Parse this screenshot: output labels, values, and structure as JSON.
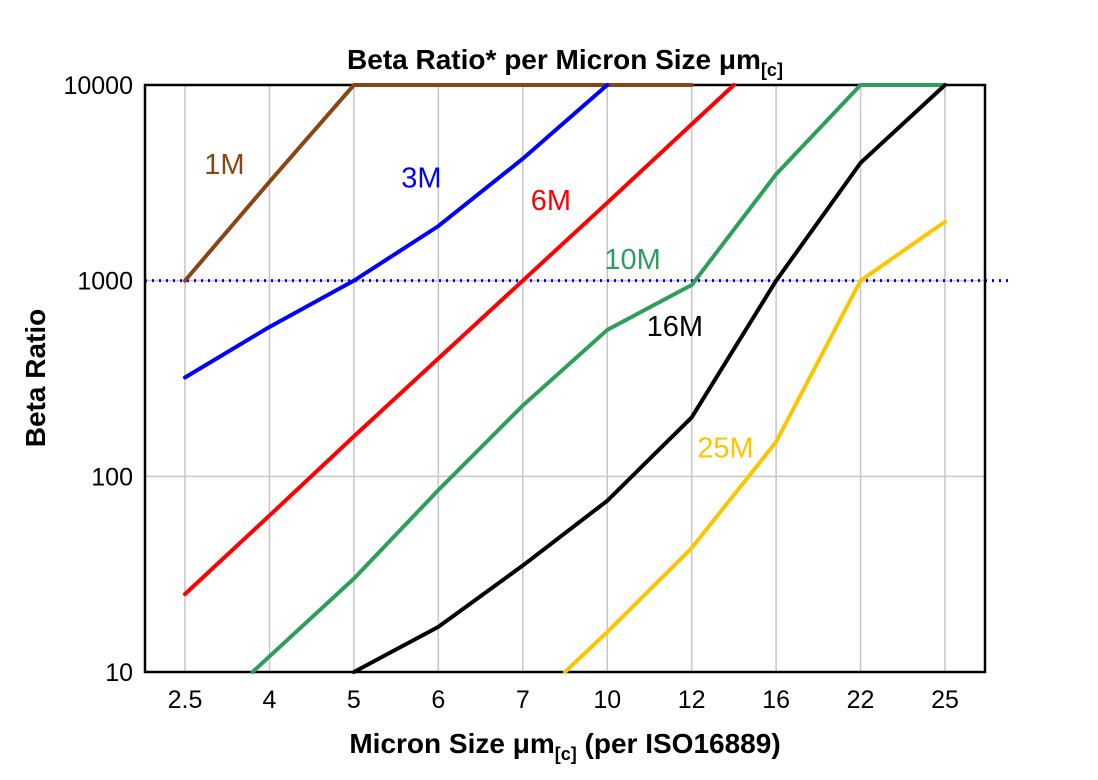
{
  "title": {
    "text": "Beta Ratio* per Micron Size μm",
    "subscript": "[c]"
  },
  "y_axis_label": "Beta Ratio",
  "x_axis_label": {
    "prefix": "Micron Size μm",
    "subscript": "[c]",
    "suffix": " (per ISO16889)"
  },
  "chart_data": {
    "type": "line",
    "x_scale": "categorical",
    "y_scale": "log",
    "categories": [
      2.5,
      4,
      5,
      6,
      7,
      10,
      12,
      16,
      22,
      25
    ],
    "x_tick_labels": [
      "2.5",
      "4",
      "5",
      "6",
      "7",
      "10",
      "12",
      "16",
      "22",
      "25"
    ],
    "ylim": [
      10,
      10000
    ],
    "y_ticks": [
      10,
      100,
      1000,
      10000
    ],
    "h_gridlines": [
      100,
      1000
    ],
    "grid_on": true,
    "grid_color": "#c6c6c6",
    "legend_position": "inline-labels",
    "reference_line": {
      "y": 1000,
      "color": "#0000ee",
      "style": "dotted"
    },
    "series": [
      {
        "name": "1M",
        "color": "#8B4513",
        "points": [
          [
            2.5,
            1000
          ],
          [
            4,
            3200
          ],
          [
            5,
            10000
          ],
          [
            12,
            10000
          ]
        ],
        "label_pos": [
          3.2,
          3500
        ]
      },
      {
        "name": "3M",
        "color": "#0000ff",
        "points": [
          [
            2.5,
            320
          ],
          [
            4,
            580
          ],
          [
            5,
            1000
          ],
          [
            6,
            1900
          ],
          [
            7,
            4200
          ],
          [
            10,
            10000
          ]
        ],
        "label_pos": [
          5.8,
          3000
        ]
      },
      {
        "name": "6M",
        "color": "#ff0000",
        "points": [
          [
            2.5,
            25
          ],
          [
            4,
            63
          ],
          [
            5,
            160
          ],
          [
            6,
            400
          ],
          [
            7,
            1000
          ],
          [
            10,
            2500
          ],
          [
            12,
            6300
          ],
          [
            14,
            10000
          ]
        ],
        "label_pos": [
          8.0,
          2300
        ]
      },
      {
        "name": "10M",
        "color": "#2e9e5b",
        "points": [
          [
            3.7,
            10
          ],
          [
            5,
            30
          ],
          [
            6,
            85
          ],
          [
            7,
            230
          ],
          [
            10,
            560
          ],
          [
            12,
            950
          ],
          [
            16,
            3500
          ],
          [
            22,
            10000
          ],
          [
            25,
            10000
          ]
        ],
        "label_pos": [
          10.6,
          1150
        ]
      },
      {
        "name": "16M",
        "color": "#000000",
        "points": [
          [
            5,
            10
          ],
          [
            6,
            17
          ],
          [
            7,
            35
          ],
          [
            10,
            75
          ],
          [
            12,
            200
          ],
          [
            16,
            1000
          ],
          [
            22,
            4000
          ],
          [
            25,
            10000
          ]
        ],
        "label_pos": [
          11.6,
          520
        ]
      },
      {
        "name": "25M",
        "color": "#fdc500",
        "points": [
          [
            8.5,
            10
          ],
          [
            10,
            16
          ],
          [
            12,
            43
          ],
          [
            16,
            150
          ],
          [
            22,
            1000
          ],
          [
            25,
            2000
          ]
        ],
        "label_pos": [
          13.6,
          125
        ]
      }
    ]
  }
}
